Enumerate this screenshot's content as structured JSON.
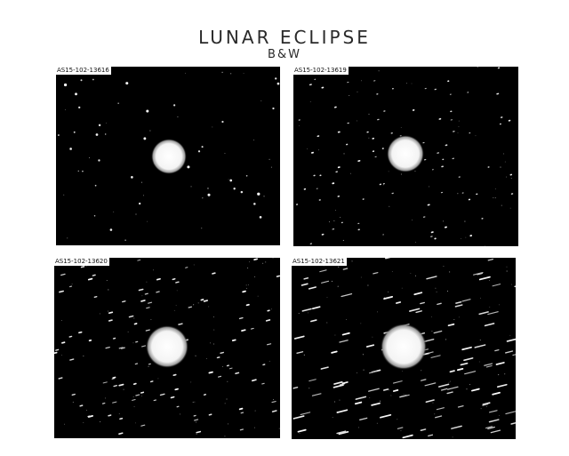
{
  "header": {
    "title": "LUNAR ECLIPSE",
    "subtitle": "B&W"
  },
  "photos": [
    {
      "label": "AS15-102-13616"
    },
    {
      "label": "AS15-102-13619"
    },
    {
      "label": "AS15-102-13620"
    },
    {
      "label": "AS15-102-13621"
    }
  ]
}
